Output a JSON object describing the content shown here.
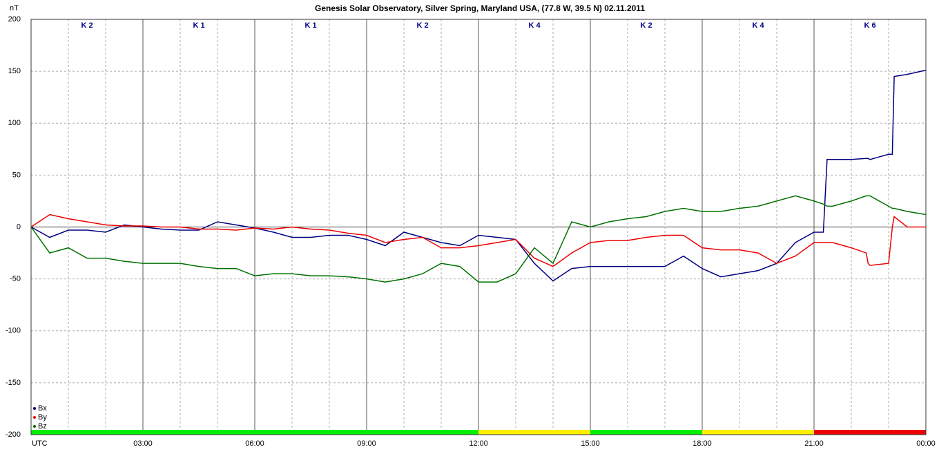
{
  "chart_data": {
    "type": "line",
    "title": "Genesis Solar Observatory, Silver Spring, Maryland USA, (77.8 W, 39.5 N)  02.11.2011",
    "ylabel": "nT",
    "xlim": [
      0,
      24
    ],
    "xticks": [
      {
        "value": 0,
        "label": "UTC"
      },
      {
        "value": 3,
        "label": "03:00"
      },
      {
        "value": 6,
        "label": "06:00"
      },
      {
        "value": 9,
        "label": "09:00"
      },
      {
        "value": 12,
        "label": "12:00"
      },
      {
        "value": 15,
        "label": "15:00"
      },
      {
        "value": 18,
        "label": "18:00"
      },
      {
        "value": 21,
        "label": "21:00"
      },
      {
        "value": 24,
        "label": "00:00"
      }
    ],
    "xminorticks": [
      1,
      2,
      4,
      5,
      7,
      8,
      10,
      11,
      13,
      14,
      16,
      17,
      19,
      20,
      22,
      23
    ],
    "ylim": [
      -200,
      200
    ],
    "yticks": [
      -200,
      -150,
      -100,
      -50,
      0,
      50,
      100,
      150,
      200
    ],
    "grid": true,
    "legend": "bottom-left",
    "k_labels": [
      "K 2",
      "K 1",
      "K 1",
      "K 2",
      "K 4",
      "K 2",
      "K 4",
      "K 6"
    ],
    "k_colors": [
      "#00ee00",
      "#00ee00",
      "#00ee00",
      "#00ee00",
      "#ffee00",
      "#00ee00",
      "#ffee00",
      "#ee0000"
    ],
    "x": [
      0,
      0.5,
      1,
      1.5,
      2,
      2.5,
      3,
      3.5,
      4,
      4.5,
      5,
      5.5,
      6,
      6.5,
      7,
      7.5,
      8,
      8.5,
      9,
      9.5,
      10,
      10.5,
      11,
      11.5,
      12,
      12.5,
      13,
      13.5,
      14,
      14.5,
      15,
      15.5,
      16,
      16.5,
      17,
      17.5,
      18,
      18.5,
      19,
      19.5,
      20,
      20.5,
      21,
      21.25,
      21.35,
      21.5,
      22,
      22.4,
      22.45,
      22.5,
      23,
      23.1,
      23.15,
      23.5,
      24
    ],
    "series": [
      {
        "name": "Bx",
        "color": "#000080",
        "values": [
          0,
          -10,
          -3,
          -3,
          -5,
          2,
          0,
          -2,
          -3,
          -3,
          5,
          2,
          -1,
          -5,
          -10,
          -10,
          -8,
          -8,
          -12,
          -18,
          -5,
          -10,
          -15,
          -18,
          -8,
          -10,
          -12,
          -35,
          -52,
          -40,
          -38,
          -38,
          -38,
          -38,
          -38,
          -28,
          -40,
          -48,
          -45,
          -42,
          -35,
          -15,
          -5,
          -5,
          65,
          65,
          65,
          66,
          66,
          65,
          70,
          70,
          145,
          147,
          151
        ]
      },
      {
        "name": "By",
        "color": "#ee0000",
        "values": [
          0,
          12,
          8,
          5,
          2,
          1,
          1,
          0,
          0,
          -2,
          -2,
          -3,
          -1,
          -2,
          0,
          -2,
          -3,
          -6,
          -8,
          -15,
          -12,
          -10,
          -20,
          -20,
          -18,
          -15,
          -12,
          -30,
          -38,
          -25,
          -15,
          -13,
          -13,
          -10,
          -8,
          -8,
          -20,
          -22,
          -22,
          -25,
          -35,
          -28,
          -15,
          -15,
          -15,
          -15,
          -20,
          -25,
          -35,
          -37,
          -35,
          0,
          10,
          0,
          0
        ]
      },
      {
        "name": "Bz",
        "color": "#007000",
        "values": [
          0,
          -25,
          -20,
          -30,
          -30,
          -33,
          -35,
          -35,
          -35,
          -38,
          -40,
          -40,
          -47,
          -45,
          -45,
          -47,
          -47,
          -48,
          -50,
          -53,
          -50,
          -45,
          -35,
          -38,
          -53,
          -53,
          -45,
          -20,
          -35,
          5,
          0,
          5,
          8,
          10,
          15,
          18,
          15,
          15,
          18,
          20,
          25,
          30,
          25,
          22,
          20,
          20,
          25,
          30,
          30,
          30,
          20,
          18,
          18,
          15,
          12
        ]
      }
    ]
  }
}
